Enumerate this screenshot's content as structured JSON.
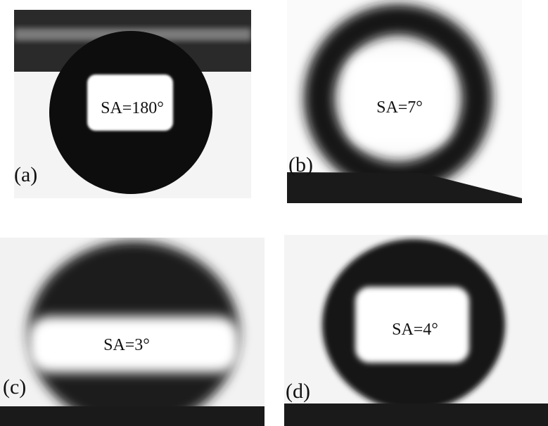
{
  "panels": [
    {
      "label": "(a)",
      "angle": "SA=180°"
    },
    {
      "label": "(b)",
      "angle": "SA=7°"
    },
    {
      "label": "(c)",
      "angle": "SA=3°"
    },
    {
      "label": "(d)",
      "angle": "SA=4°"
    }
  ]
}
